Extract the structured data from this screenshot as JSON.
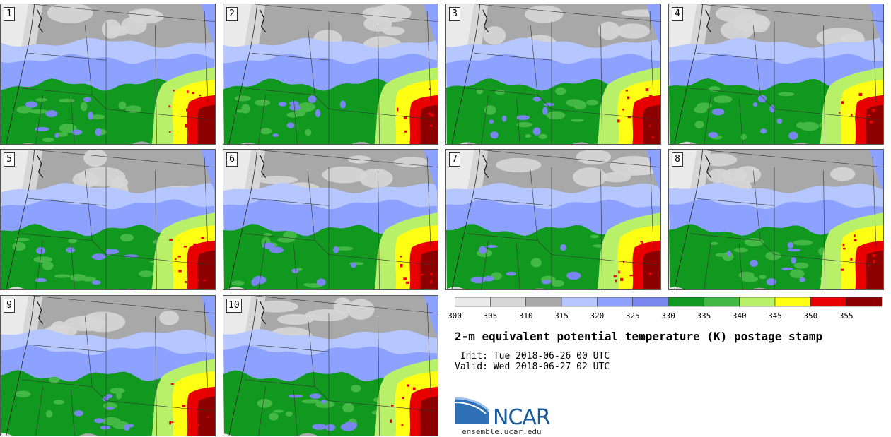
{
  "title": "2-m equivalent potential temperature (K) postage stamp",
  "init_line": " Init: Tue 2018-06-26 00 UTC",
  "valid_line": "Valid: Wed 2018-06-27 02 UTC",
  "logo": {
    "text": "NCAR",
    "site": "ensemble.ucar.edu",
    "icon": "ncar-logo-icon"
  },
  "members": [
    "1",
    "2",
    "3",
    "4",
    "5",
    "6",
    "7",
    "8",
    "9",
    "10"
  ],
  "colorbar": {
    "ticks": [
      "300",
      "305",
      "310",
      "315",
      "320",
      "325",
      "330",
      "335",
      "340",
      "345",
      "350",
      "355"
    ],
    "colors": [
      "#eaeaea",
      "#d6d6d6",
      "#a8a8a8",
      "#b6c6ff",
      "#8da2ff",
      "#7a86f0",
      "#11981f",
      "#44b844",
      "#b8f06a",
      "#ffff14",
      "#e80000",
      "#8c0000"
    ]
  }
}
